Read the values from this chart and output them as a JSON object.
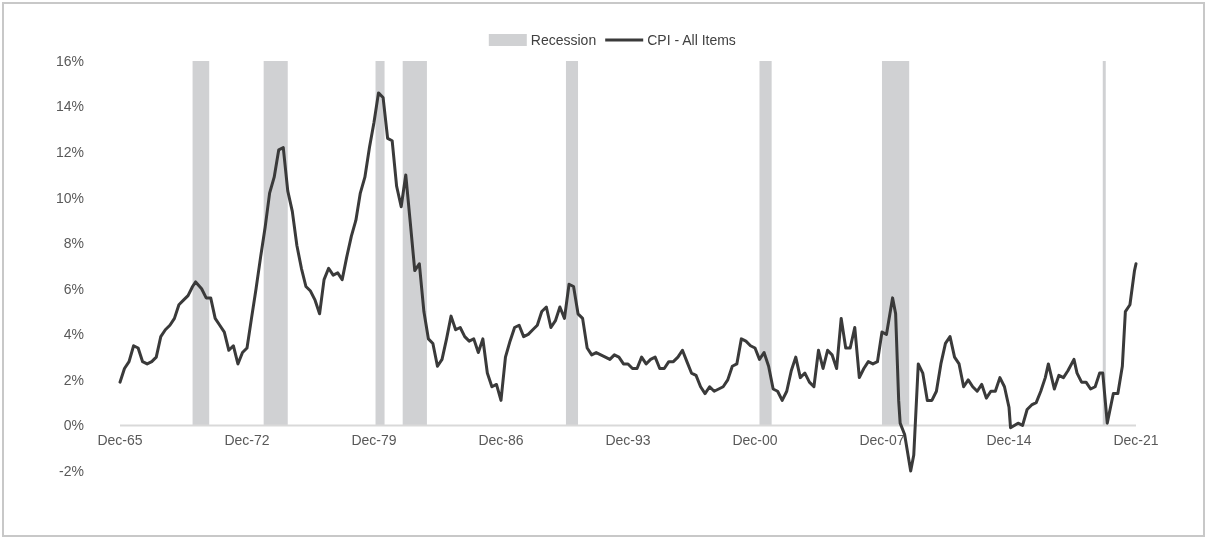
{
  "chart_data": {
    "type": "line",
    "legend": "top",
    "grid": false,
    "xlim": [
      "1965-12",
      "2021-12"
    ],
    "xticks": [
      {
        "value": "1965-12",
        "label": "Dec-65"
      },
      {
        "value": "1972-12",
        "label": "Dec-72"
      },
      {
        "value": "1979-12",
        "label": "Dec-79"
      },
      {
        "value": "1986-12",
        "label": "Dec-86"
      },
      {
        "value": "1993-12",
        "label": "Dec-93"
      },
      {
        "value": "2000-12",
        "label": "Dec-00"
      },
      {
        "value": "2007-12",
        "label": "Dec-07"
      },
      {
        "value": "2014-12",
        "label": "Dec-14"
      },
      {
        "value": "2021-12",
        "label": "Dec-21"
      }
    ],
    "ylim": [
      -2,
      16
    ],
    "yticks": [
      {
        "value": -2,
        "label": "-2%"
      },
      {
        "value": 0,
        "label": "0%"
      },
      {
        "value": 2,
        "label": "2%"
      },
      {
        "value": 4,
        "label": "4%"
      },
      {
        "value": 6,
        "label": "6%"
      },
      {
        "value": 8,
        "label": "8%"
      },
      {
        "value": 10,
        "label": "10%"
      },
      {
        "value": 12,
        "label": "12%"
      },
      {
        "value": 14,
        "label": "14%"
      },
      {
        "value": 16,
        "label": "16%"
      }
    ],
    "bands": [
      {
        "axis": "x",
        "from": "1969-12",
        "to": "1970-11",
        "label": "Recession",
        "color": "#d0d1d3"
      },
      {
        "axis": "x",
        "from": "1973-11",
        "to": "1975-03",
        "color": "#d0d1d3"
      },
      {
        "axis": "x",
        "from": "1980-01",
        "to": "1980-07",
        "color": "#d0d1d3"
      },
      {
        "axis": "x",
        "from": "1981-07",
        "to": "1982-11",
        "color": "#d0d1d3"
      },
      {
        "axis": "x",
        "from": "1990-07",
        "to": "1991-03",
        "color": "#d0d1d3"
      },
      {
        "axis": "x",
        "from": "2001-03",
        "to": "2001-11",
        "color": "#d0d1d3"
      },
      {
        "axis": "x",
        "from": "2007-12",
        "to": "2009-06",
        "color": "#d0d1d3"
      },
      {
        "axis": "x",
        "from": "2020-02",
        "to": "2020-04",
        "color": "#d0d1d3"
      }
    ],
    "x": [
      "1965-12",
      "1966-03",
      "1966-06",
      "1966-09",
      "1966-12",
      "1967-03",
      "1967-06",
      "1967-09",
      "1967-12",
      "1968-03",
      "1968-06",
      "1968-09",
      "1968-12",
      "1969-03",
      "1969-06",
      "1969-09",
      "1969-12",
      "1970-02",
      "1970-06",
      "1970-09",
      "1970-12",
      "1971-03",
      "1971-06",
      "1971-09",
      "1971-12",
      "1972-03",
      "1972-06",
      "1972-09",
      "1972-12",
      "1973-03",
      "1973-06",
      "1973-09",
      "1973-12",
      "1974-03",
      "1974-06",
      "1974-09",
      "1974-12",
      "1975-03",
      "1975-06",
      "1975-09",
      "1975-12",
      "1976-03",
      "1976-06",
      "1976-09",
      "1976-12",
      "1977-03",
      "1977-06",
      "1977-09",
      "1977-12",
      "1978-03",
      "1978-06",
      "1978-09",
      "1978-12",
      "1979-03",
      "1979-06",
      "1979-09",
      "1979-12",
      "1980-03",
      "1980-06",
      "1980-09",
      "1980-12",
      "1981-03",
      "1981-06",
      "1981-09",
      "1981-12",
      "1982-03",
      "1982-06",
      "1982-09",
      "1982-12",
      "1983-03",
      "1983-06",
      "1983-09",
      "1983-12",
      "1984-03",
      "1984-06",
      "1984-09",
      "1984-12",
      "1985-03",
      "1985-06",
      "1985-09",
      "1985-12",
      "1986-03",
      "1986-06",
      "1986-09",
      "1986-12",
      "1987-03",
      "1987-06",
      "1987-09",
      "1987-12",
      "1988-03",
      "1988-06",
      "1988-09",
      "1988-12",
      "1989-03",
      "1989-06",
      "1989-09",
      "1989-12",
      "1990-03",
      "1990-06",
      "1990-09",
      "1990-12",
      "1991-03",
      "1991-06",
      "1991-09",
      "1991-12",
      "1992-03",
      "1992-06",
      "1992-09",
      "1992-12",
      "1993-03",
      "1993-06",
      "1993-09",
      "1993-12",
      "1994-03",
      "1994-06",
      "1994-09",
      "1994-12",
      "1995-03",
      "1995-06",
      "1995-09",
      "1995-12",
      "1996-03",
      "1996-06",
      "1996-09",
      "1996-12",
      "1997-03",
      "1997-06",
      "1997-09",
      "1997-12",
      "1998-03",
      "1998-06",
      "1998-09",
      "1998-12",
      "1999-03",
      "1999-06",
      "1999-09",
      "1999-12",
      "2000-03",
      "2000-06",
      "2000-09",
      "2000-12",
      "2001-03",
      "2001-06",
      "2001-09",
      "2001-12",
      "2002-03",
      "2002-06",
      "2002-09",
      "2002-12",
      "2003-03",
      "2003-06",
      "2003-09",
      "2003-12",
      "2004-03",
      "2004-06",
      "2004-09",
      "2004-12",
      "2005-03",
      "2005-06",
      "2005-09",
      "2005-12",
      "2006-03",
      "2006-06",
      "2006-09",
      "2006-12",
      "2007-03",
      "2007-06",
      "2007-09",
      "2007-12",
      "2008-03",
      "2008-07",
      "2008-09",
      "2008-11",
      "2008-12",
      "2009-03",
      "2009-07",
      "2009-09",
      "2009-12",
      "2010-03",
      "2010-06",
      "2010-09",
      "2010-12",
      "2011-03",
      "2011-06",
      "2011-09",
      "2011-12",
      "2012-03",
      "2012-06",
      "2012-09",
      "2012-12",
      "2013-03",
      "2013-06",
      "2013-09",
      "2013-12",
      "2014-03",
      "2014-06",
      "2014-09",
      "2014-12",
      "2015-01",
      "2015-06",
      "2015-09",
      "2015-12",
      "2016-03",
      "2016-06",
      "2016-09",
      "2016-12",
      "2017-02",
      "2017-06",
      "2017-09",
      "2017-12",
      "2018-03",
      "2018-07",
      "2018-09",
      "2018-12",
      "2019-03",
      "2019-06",
      "2019-09",
      "2019-12",
      "2020-02",
      "2020-05",
      "2020-09",
      "2020-12",
      "2021-03",
      "2021-05",
      "2021-08",
      "2021-11",
      "2021-12"
    ],
    "series": [
      {
        "name": "CPI - All Items",
        "color": "#3a3a3a",
        "values": [
          1.9,
          2.5,
          2.8,
          3.5,
          3.4,
          2.8,
          2.7,
          2.8,
          3.0,
          3.9,
          4.2,
          4.4,
          4.7,
          5.3,
          5.5,
          5.7,
          6.1,
          6.3,
          6.0,
          5.6,
          5.6,
          4.7,
          4.4,
          4.1,
          3.3,
          3.5,
          2.7,
          3.2,
          3.4,
          4.7,
          6.0,
          7.4,
          8.7,
          10.2,
          10.9,
          12.1,
          12.2,
          10.3,
          9.4,
          7.9,
          6.9,
          6.1,
          5.9,
          5.5,
          4.9,
          6.4,
          6.9,
          6.6,
          6.7,
          6.4,
          7.4,
          8.3,
          9.0,
          10.2,
          10.9,
          12.2,
          13.3,
          14.6,
          14.4,
          12.6,
          12.5,
          10.5,
          9.6,
          11.0,
          8.9,
          6.8,
          7.1,
          5.0,
          3.8,
          3.6,
          2.6,
          2.9,
          3.8,
          4.8,
          4.2,
          4.3,
          3.9,
          3.7,
          3.8,
          3.2,
          3.8,
          2.3,
          1.7,
          1.8,
          1.1,
          3.0,
          3.7,
          4.3,
          4.4,
          3.9,
          4.0,
          4.2,
          4.4,
          5.0,
          5.2,
          4.3,
          4.6,
          5.2,
          4.7,
          6.2,
          6.1,
          4.9,
          4.7,
          3.4,
          3.1,
          3.2,
          3.1,
          3.0,
          2.9,
          3.1,
          3.0,
          2.7,
          2.7,
          2.5,
          2.5,
          3.0,
          2.7,
          2.9,
          3.0,
          2.5,
          2.5,
          2.8,
          2.8,
          3.0,
          3.3,
          2.8,
          2.3,
          2.2,
          1.7,
          1.4,
          1.7,
          1.5,
          1.6,
          1.7,
          2.0,
          2.6,
          2.7,
          3.8,
          3.7,
          3.5,
          3.4,
          2.9,
          3.2,
          2.6,
          1.6,
          1.5,
          1.1,
          1.5,
          2.4,
          3.0,
          2.1,
          2.3,
          1.9,
          1.7,
          3.3,
          2.5,
          3.3,
          3.1,
          2.5,
          4.7,
          3.4,
          3.4,
          4.3,
          2.1,
          2.5,
          2.8,
          2.7,
          2.8,
          4.1,
          4.0,
          5.6,
          4.9,
          1.1,
          0.1,
          -0.4,
          -2.0,
          -1.3,
          2.7,
          2.3,
          1.1,
          1.1,
          1.5,
          2.7,
          3.6,
          3.9,
          3.0,
          2.7,
          1.7,
          2.0,
          1.7,
          1.5,
          1.8,
          1.2,
          1.5,
          1.5,
          2.1,
          1.7,
          0.8,
          -0.1,
          0.1,
          0.0,
          0.7,
          0.9,
          1.0,
          1.5,
          2.1,
          2.7,
          1.6,
          2.2,
          2.1,
          2.4,
          2.9,
          2.3,
          1.9,
          1.9,
          1.6,
          1.7,
          2.3,
          2.3,
          0.1,
          1.4,
          1.4,
          2.6,
          5.0,
          5.3,
          6.8,
          7.1
        ]
      }
    ]
  }
}
